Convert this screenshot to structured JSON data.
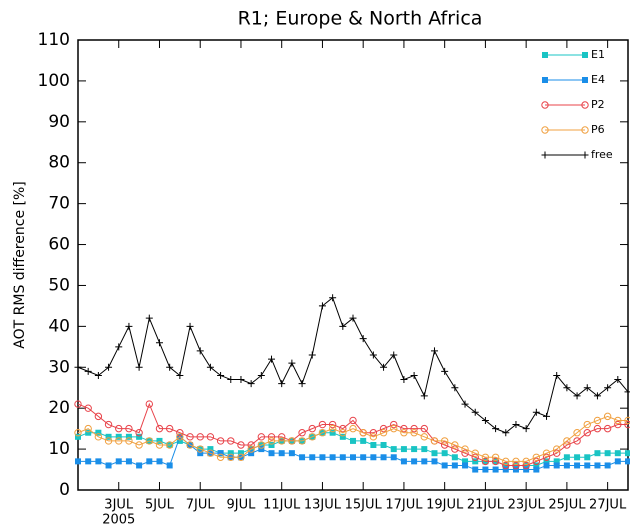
{
  "chart_data": {
    "type": "line",
    "title": "R1; Europe & North Africa",
    "ylabel": "AOT RMS difference [%]",
    "x_sublabel": "2005",
    "xlim": [
      1,
      28
    ],
    "ylim": [
      0,
      110
    ],
    "yticks": [
      0,
      10,
      20,
      30,
      40,
      50,
      60,
      70,
      80,
      90,
      100,
      110
    ],
    "xticks": [
      {
        "value": 3,
        "label": "3JUL"
      },
      {
        "value": 5,
        "label": "5JUL"
      },
      {
        "value": 7,
        "label": "7JUL"
      },
      {
        "value": 9,
        "label": "9JUL"
      },
      {
        "value": 11,
        "label": "11JUL"
      },
      {
        "value": 13,
        "label": "13JUL"
      },
      {
        "value": 15,
        "label": "15JUL"
      },
      {
        "value": 17,
        "label": "17JUL"
      },
      {
        "value": 19,
        "label": "19JUL"
      },
      {
        "value": 21,
        "label": "21JUL"
      },
      {
        "value": 23,
        "label": "23JUL"
      },
      {
        "value": 25,
        "label": "25JUL"
      },
      {
        "value": 27,
        "label": "27JUL"
      }
    ],
    "legend": "upper right",
    "x": [
      1,
      1.5,
      2,
      2.5,
      3,
      3.5,
      4,
      4.5,
      5,
      5.5,
      6,
      6.5,
      7,
      7.5,
      8,
      8.5,
      9,
      9.5,
      10,
      10.5,
      11,
      11.5,
      12,
      12.5,
      13,
      13.5,
      14,
      14.5,
      15,
      15.5,
      16,
      16.5,
      17,
      17.5,
      18,
      18.5,
      19,
      19.5,
      20,
      20.5,
      21,
      21.5,
      22,
      22.5,
      23,
      23.5,
      24,
      24.5,
      25,
      25.5,
      26,
      26.5,
      27,
      27.5,
      28
    ],
    "series": [
      {
        "name": "E1",
        "color": "#19c4c4",
        "marker": "square",
        "values": [
          13,
          14,
          14,
          13,
          13,
          13,
          13,
          12,
          12,
          11,
          12,
          11,
          10,
          10,
          9,
          9,
          9,
          10,
          11,
          11,
          12,
          12,
          12,
          13,
          14,
          14,
          13,
          12,
          12,
          11,
          11,
          10,
          10,
          10,
          10,
          9,
          9,
          8,
          7,
          7,
          7,
          7,
          6,
          6,
          6,
          6,
          7,
          7,
          8,
          8,
          8,
          9,
          9,
          9,
          9
        ]
      },
      {
        "name": "E4",
        "color": "#1a8ee8",
        "marker": "square",
        "values": [
          7,
          7,
          7,
          6,
          7,
          7,
          6,
          7,
          7,
          6,
          13,
          11,
          9,
          9,
          9,
          8,
          8,
          9,
          10,
          9,
          9,
          9,
          8,
          8,
          8,
          8,
          8,
          8,
          8,
          8,
          8,
          8,
          7,
          7,
          7,
          7,
          6,
          6,
          6,
          5,
          5,
          5,
          5,
          5,
          5,
          5,
          6,
          6,
          6,
          6,
          6,
          6,
          6,
          7,
          7
        ]
      },
      {
        "name": "P2",
        "color": "#e8434a",
        "marker": "circle",
        "values": [
          21,
          20,
          18,
          16,
          15,
          15,
          14,
          21,
          15,
          15,
          14,
          13,
          13,
          13,
          12,
          12,
          11,
          11,
          13,
          13,
          13,
          12,
          14,
          15,
          16,
          16,
          15,
          17,
          14,
          14,
          15,
          16,
          15,
          15,
          15,
          12,
          11,
          10,
          9,
          8,
          7,
          7,
          6,
          6,
          6,
          7,
          8,
          9,
          11,
          12,
          14,
          15,
          15,
          16,
          16
        ]
      },
      {
        "name": "P6",
        "color": "#f0a040",
        "marker": "circle",
        "values": [
          14,
          15,
          13,
          12,
          12,
          12,
          11,
          12,
          11,
          11,
          13,
          11,
          10,
          9,
          8,
          8,
          8,
          10,
          11,
          12,
          12,
          12,
          12,
          13,
          14,
          15,
          14,
          15,
          14,
          13,
          14,
          15,
          14,
          14,
          13,
          12,
          12,
          11,
          10,
          9,
          8,
          8,
          7,
          7,
          7,
          8,
          9,
          10,
          12,
          14,
          16,
          17,
          18,
          17,
          17
        ]
      },
      {
        "name": "free",
        "color": "#000000",
        "marker": "plus",
        "values": [
          30,
          29,
          28,
          30,
          35,
          40,
          30,
          42,
          36,
          30,
          28,
          40,
          34,
          30,
          28,
          27,
          27,
          26,
          28,
          32,
          26,
          31,
          26,
          33,
          45,
          47,
          40,
          42,
          37,
          33,
          30,
          33,
          27,
          28,
          23,
          34,
          29,
          25,
          21,
          19,
          17,
          15,
          14,
          16,
          15,
          19,
          18,
          28,
          25,
          23,
          25,
          23,
          25,
          27,
          24
        ]
      }
    ]
  }
}
